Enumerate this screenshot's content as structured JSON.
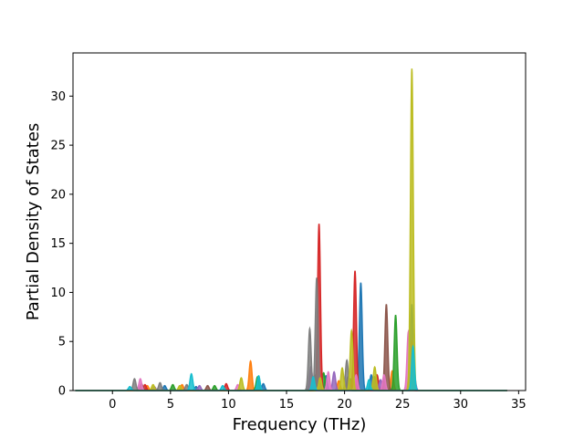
{
  "chart_data": {
    "type": "line",
    "title": "",
    "xlabel": "Frequency (THz)",
    "ylabel": "Partial Density of States",
    "xlim": [
      -3.4,
      35.6
    ],
    "ylim": [
      0,
      34.4
    ],
    "xticks": [
      0,
      5,
      10,
      15,
      20,
      25,
      30,
      35
    ],
    "yticks": [
      0,
      5,
      10,
      15,
      20,
      25,
      30
    ],
    "x_range_of_data": [
      -3.2,
      34
    ],
    "grid": false,
    "legend": "none",
    "series": [
      {
        "color": "#1f77b4",
        "peaks": [
          [
            21.4,
            11.0
          ],
          [
            25.8,
            8.8
          ],
          [
            22.3,
            1.6
          ],
          [
            18.4,
            1.5
          ],
          [
            13.0,
            0.7
          ],
          [
            4.5,
            0.5
          ],
          [
            7.2,
            0.4
          ]
        ]
      },
      {
        "color": "#ff7f0e",
        "peaks": [
          [
            11.9,
            3.0
          ],
          [
            25.6,
            1.8
          ],
          [
            24.1,
            2.0
          ],
          [
            19.5,
            1.0
          ],
          [
            6.0,
            0.6
          ],
          [
            3.0,
            0.5
          ],
          [
            17.3,
            1.2
          ]
        ]
      },
      {
        "color": "#2ca02c",
        "peaks": [
          [
            24.4,
            7.7
          ],
          [
            12.5,
            1.4
          ],
          [
            22.6,
            1.4
          ],
          [
            18.2,
            1.8
          ],
          [
            20.5,
            1.2
          ],
          [
            5.2,
            0.6
          ],
          [
            8.8,
            0.5
          ]
        ]
      },
      {
        "color": "#d62728",
        "peaks": [
          [
            17.8,
            17.0
          ],
          [
            20.9,
            12.2
          ],
          [
            25.7,
            2.4
          ],
          [
            22.8,
            1.6
          ],
          [
            9.8,
            0.7
          ],
          [
            2.8,
            0.6
          ]
        ]
      },
      {
        "color": "#9467bd",
        "peaks": [
          [
            17.1,
            2.4
          ],
          [
            19.1,
            1.9
          ],
          [
            23.1,
            1.1
          ],
          [
            26.0,
            1.6
          ],
          [
            7.5,
            0.5
          ],
          [
            3.6,
            0.4
          ]
        ]
      },
      {
        "color": "#8c564b",
        "peaks": [
          [
            23.6,
            8.8
          ],
          [
            25.8,
            5.0
          ],
          [
            20.3,
            1.4
          ],
          [
            17.5,
            1.6
          ],
          [
            2.5,
            0.7
          ],
          [
            8.2,
            0.5
          ]
        ]
      },
      {
        "color": "#e377c2",
        "peaks": [
          [
            18.6,
            1.9
          ],
          [
            21.0,
            1.6
          ],
          [
            25.5,
            6.0
          ],
          [
            2.4,
            1.2
          ],
          [
            23.4,
            1.6
          ],
          [
            10.8,
            0.6
          ],
          [
            17.2,
            1.1
          ]
        ]
      },
      {
        "color": "#7f7f7f",
        "peaks": [
          [
            17.6,
            11.5
          ],
          [
            17.0,
            6.3
          ],
          [
            20.2,
            3.1
          ],
          [
            1.9,
            1.2
          ],
          [
            22.5,
            1.2
          ],
          [
            4.1,
            0.8
          ],
          [
            6.4,
            0.6
          ]
        ]
      },
      {
        "color": "#bcbd22",
        "peaks": [
          [
            25.8,
            32.8
          ],
          [
            20.6,
            6.1
          ],
          [
            22.6,
            2.4
          ],
          [
            11.1,
            1.3
          ],
          [
            19.8,
            2.3
          ],
          [
            3.5,
            0.6
          ],
          [
            5.8,
            0.5
          ],
          [
            17.9,
            1.3
          ]
        ]
      },
      {
        "color": "#17becf",
        "peaks": [
          [
            6.8,
            1.7
          ],
          [
            12.6,
            1.5
          ],
          [
            25.9,
            4.5
          ],
          [
            17.3,
            1.4
          ],
          [
            22.1,
            1.1
          ],
          [
            1.5,
            0.4
          ],
          [
            9.5,
            0.5
          ]
        ]
      }
    ]
  }
}
